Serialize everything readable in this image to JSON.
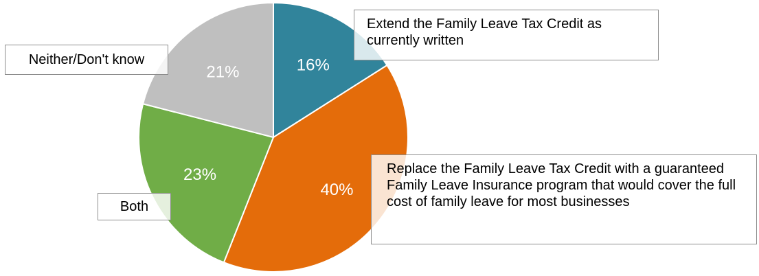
{
  "chart_data": {
    "type": "pie",
    "title": "",
    "slices": [
      {
        "label": "Extend the Family Leave Tax Credit as currently written",
        "value": 16,
        "value_label": "16%",
        "color": "#31849b"
      },
      {
        "label": "Replace the Family Leave Tax Credit with a guaranteed Family Leave Insurance program that would cover the full cost of family leave for most businesses",
        "value": 40,
        "value_label": "40%",
        "color": "#e46c0a"
      },
      {
        "label": "Both",
        "value": 23,
        "value_label": "23%",
        "color": "#70ad47"
      },
      {
        "label": "Neither/Don't know",
        "value": 21,
        "value_label": "21%",
        "color": "#bfbfbf"
      }
    ],
    "start": "12 o'clock",
    "direction": "clockwise",
    "legend": "none (callout labels)"
  }
}
